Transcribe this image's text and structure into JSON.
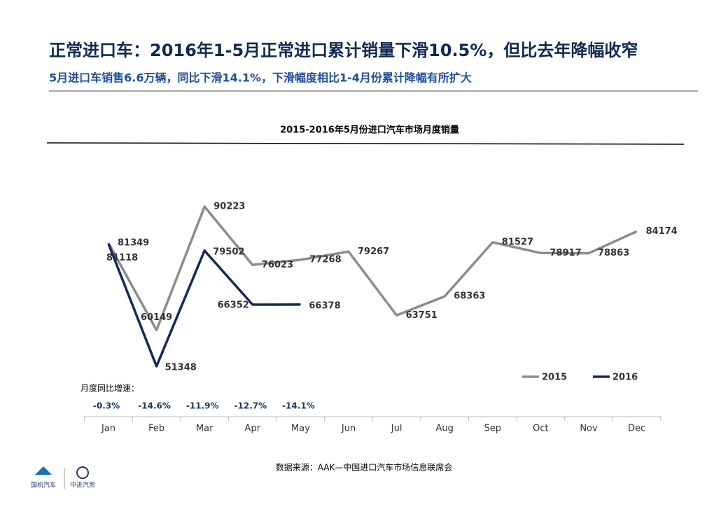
{
  "header": {
    "title": "正常进口车：2016年1-5月正常进口累计销量下滑10.5%，但比去年降幅收窄",
    "subtitle": "5月进口车销售6.6万辆，同比下滑14.1%，下滑幅度相比1-4月份累计降幅有所扩大"
  },
  "chart_data": {
    "type": "line",
    "title": "2015-2016年5月份进口汽车市场月度销量",
    "categories": [
      "Jan",
      "Feb",
      "Mar",
      "Apr",
      "May",
      "Jun",
      "Jul",
      "Aug",
      "Sep",
      "Oct",
      "Nov",
      "Dec"
    ],
    "series": [
      {
        "name": "2015",
        "color": "#8c8c8c",
        "values": [
          81349,
          60149,
          90223,
          76023,
          77268,
          79267,
          63751,
          68363,
          81527,
          78917,
          78863,
          84174
        ]
      },
      {
        "name": "2016",
        "color": "#14285a",
        "values": [
          81118,
          51348,
          79502,
          66352,
          66378,
          null,
          null,
          null,
          null,
          null,
          null,
          null
        ]
      }
    ],
    "growth": {
      "label": "月度同比增速：",
      "values": [
        -0.3,
        -14.6,
        -11.9,
        -12.7,
        -14.1
      ],
      "value_labels": [
        "-0.3%",
        "-14.6%",
        "-11.9%",
        "-12.7%",
        "-14.1%"
      ]
    },
    "legend": "bottom-right"
  },
  "footer": {
    "source": "数据来源：AAK—中国进口汽车市场信息联席会",
    "logos": [
      "国机汽车",
      "中进汽贸"
    ]
  }
}
